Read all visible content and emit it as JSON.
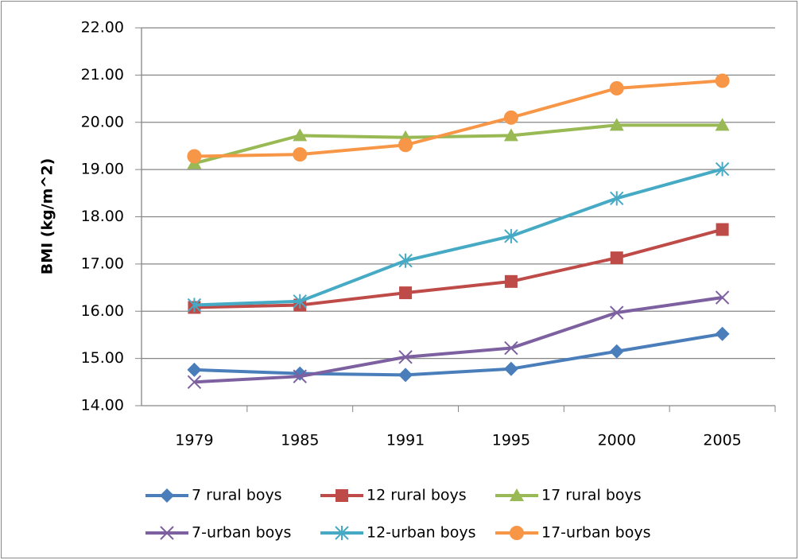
{
  "chart_data": {
    "type": "line",
    "y_label": "BMI (kg/m^2)",
    "categories": [
      "1979",
      "1985",
      "1991",
      "1995",
      "2000",
      "2005"
    ],
    "series": [
      {
        "name": "7 rural boys",
        "color": "#4a7ebb",
        "marker": "diamond",
        "values": [
          14.76,
          14.68,
          14.65,
          14.78,
          15.15,
          15.52
        ]
      },
      {
        "name": "12 rural boys",
        "color": "#be4b48",
        "marker": "square",
        "values": [
          16.08,
          16.13,
          16.39,
          16.63,
          17.13,
          17.73
        ]
      },
      {
        "name": "17 rural boys",
        "color": "#98b954",
        "marker": "triangle",
        "values": [
          19.13,
          19.72,
          19.68,
          19.72,
          19.94,
          19.94
        ]
      },
      {
        "name": "7-urban boys",
        "color": "#7d60a0",
        "marker": "x",
        "values": [
          14.5,
          14.62,
          15.03,
          15.22,
          15.97,
          16.29
        ]
      },
      {
        "name": "12-urban boys",
        "color": "#46aac5",
        "marker": "star",
        "values": [
          16.13,
          16.21,
          17.07,
          17.59,
          18.39,
          19.01
        ]
      },
      {
        "name": "17-urban boys",
        "color": "#f79646",
        "marker": "circle",
        "values": [
          19.28,
          19.32,
          19.52,
          20.1,
          20.72,
          20.88
        ]
      }
    ],
    "ylim": [
      14,
      22
    ],
    "yticks": [
      {
        "value": 14,
        "label": "14.00"
      },
      {
        "value": 15,
        "label": "15.00"
      },
      {
        "value": 16,
        "label": "16.00"
      },
      {
        "value": 17,
        "label": "17.00"
      },
      {
        "value": 18,
        "label": "18.00"
      },
      {
        "value": 19,
        "label": "19.00"
      },
      {
        "value": 20,
        "label": "20.00"
      },
      {
        "value": 21,
        "label": "21.00"
      },
      {
        "value": 22,
        "label": "22.00"
      }
    ],
    "grid": true,
    "legend": "bottom"
  }
}
